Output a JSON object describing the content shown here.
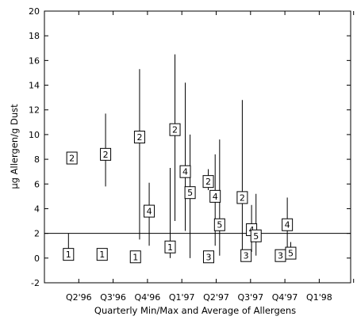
{
  "chart_data": {
    "type": "scatter",
    "xlabel": "Quarterly Min/Max and Average of Allergens",
    "ylabel": "µg Allergen/g Dust",
    "ylim": [
      -2,
      20
    ],
    "yticks": [
      -2,
      0,
      2,
      4,
      6,
      8,
      10,
      12,
      14,
      16,
      18,
      20
    ],
    "categories": [
      "Q2'96",
      "Q3'96",
      "Q4'96",
      "Q1'97",
      "Q2'97",
      "Q3'97",
      "Q4'97",
      "Q1'98"
    ],
    "reference_line": 2,
    "grid": false,
    "points": [
      {
        "q": 0.7,
        "label": "1",
        "avg": 0.3,
        "min": 0.0,
        "max": 2.0
      },
      {
        "q": 0.8,
        "label": "2",
        "avg": 8.1,
        "min": null,
        "max": null
      },
      {
        "q": 1.68,
        "label": "1",
        "avg": 0.3,
        "min": null,
        "max": null
      },
      {
        "q": 1.78,
        "label": "2",
        "avg": 8.4,
        "min": 5.8,
        "max": 11.7
      },
      {
        "q": 2.65,
        "label": "1",
        "avg": 0.1,
        "min": null,
        "max": null
      },
      {
        "q": 2.77,
        "label": "2",
        "avg": 9.8,
        "min": 1.5,
        "max": 15.3
      },
      {
        "q": 3.05,
        "label": "4",
        "avg": 3.8,
        "min": 1.0,
        "max": 6.1
      },
      {
        "q": 3.66,
        "label": "1",
        "avg": 0.9,
        "min": 0.0,
        "max": 7.3
      },
      {
        "q": 3.8,
        "label": "2",
        "avg": 10.4,
        "min": 3.0,
        "max": 16.5
      },
      {
        "q": 4.1,
        "label": "4",
        "avg": 7.0,
        "min": 2.2,
        "max": 14.2
      },
      {
        "q": 4.24,
        "label": "5",
        "avg": 5.3,
        "min": 0.0,
        "max": 10.0
      },
      {
        "q": 4.77,
        "label": "2",
        "avg": 6.2,
        "min": 5.5,
        "max": 7.2
      },
      {
        "q": 4.78,
        "label": "3",
        "avg": 0.1,
        "min": null,
        "max": null
      },
      {
        "q": 4.97,
        "label": "4",
        "avg": 5.0,
        "min": 1.0,
        "max": 8.4
      },
      {
        "q": 5.1,
        "label": "5",
        "avg": 2.7,
        "min": 0.2,
        "max": 9.6
      },
      {
        "q": 5.76,
        "label": "2",
        "avg": 4.9,
        "min": 0.5,
        "max": 12.8
      },
      {
        "q": 5.87,
        "label": "3",
        "avg": 0.2,
        "min": null,
        "max": null
      },
      {
        "q": 6.03,
        "label": "4",
        "avg": 2.3,
        "min": 0.5,
        "max": 4.3
      },
      {
        "q": 6.16,
        "label": "5",
        "avg": 1.8,
        "min": 0.2,
        "max": 5.2
      },
      {
        "q": 6.87,
        "label": "3",
        "avg": 0.2,
        "min": null,
        "max": null
      },
      {
        "q": 7.07,
        "label": "4",
        "avg": 2.7,
        "min": 0.5,
        "max": 4.9
      },
      {
        "q": 7.17,
        "label": "5",
        "avg": 0.4,
        "min": 0.0,
        "max": 1.3
      }
    ]
  }
}
